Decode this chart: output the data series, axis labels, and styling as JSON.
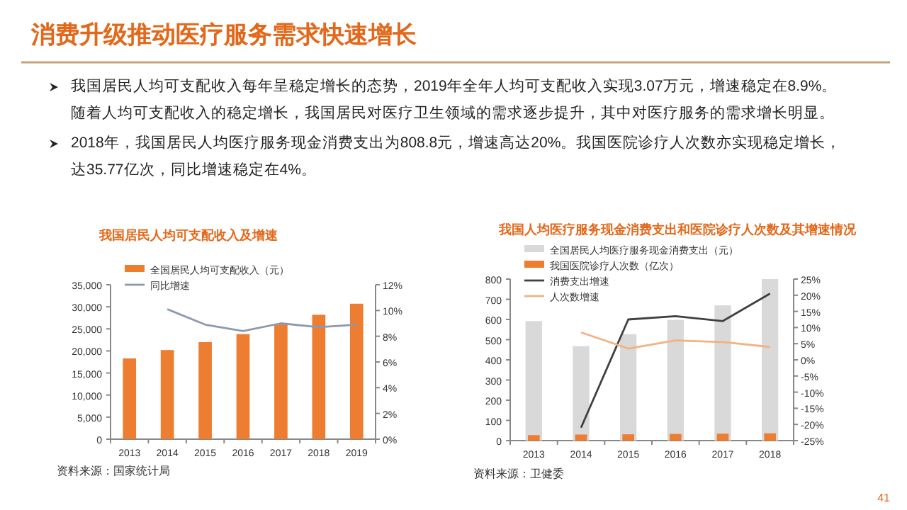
{
  "chart_data": [
    {
      "type": "other",
      "title": "消费升级推动医疗服务需求快速增长",
      "annotations": [
        "我国居民人均可支配收入每年呈稳定增长的态势，2019年全年人均可支配收入实现3.07万元，增速稳定在8.9%。随着人均可支配收入的稳定增长，我国居民对医疗卫生领域的需求逐步提升，其中对医疗服务的需求增长明显。",
        "2018年，我国居民人均医疗服务现金消费支出为808.8元，增速高达20%。我国医院诊疗人次数亦实现稳定增长，达35.77亿次，同比增速稳定在4%。",
        "41"
      ]
    },
    {
      "type": "bar",
      "title": "我国居民人均可支配收入及增速",
      "categories": [
        "2013",
        "2014",
        "2015",
        "2016",
        "2017",
        "2018",
        "2019"
      ],
      "series": [
        {
          "name": "全国居民人均可支配收入（元）",
          "color": "#ed7d31",
          "values": [
            18300,
            20200,
            22000,
            23800,
            26000,
            28200,
            30700
          ]
        },
        {
          "name": "同比增速",
          "type": "line",
          "axis": "y2",
          "color": "#8c9aae",
          "values": [
            null,
            10.1,
            8.9,
            8.4,
            9.0,
            8.7,
            8.9
          ]
        }
      ],
      "ylim": [
        0,
        35000
      ],
      "yticks": [
        0,
        {
          "value": 5000,
          "label": "5,000"
        },
        {
          "value": 10000,
          "label": "10,000"
        },
        {
          "value": 15000,
          "label": "15,000"
        },
        {
          "value": 20000,
          "label": "20,000"
        },
        {
          "value": 25000,
          "label": "25,000"
        },
        {
          "value": 30000,
          "label": "30,000"
        },
        {
          "value": 35000,
          "label": "35,000"
        }
      ],
      "y2lim": [
        0,
        12
      ],
      "y2ticks": [
        {
          "value": 0,
          "label": "0%"
        },
        {
          "value": 2,
          "label": "2%"
        },
        {
          "value": 4,
          "label": "4%"
        },
        {
          "value": 6,
          "label": "6%"
        },
        {
          "value": 8,
          "label": "8%"
        },
        {
          "value": 10,
          "label": "10%"
        },
        {
          "value": 12,
          "label": "12%"
        }
      ],
      "legend": "top left",
      "annotations": [
        "资料来源：国家统计局"
      ]
    },
    {
      "type": "bar",
      "title": "我国人均医疗服务现金消费支出和医院诊疗人次数及其增速情况",
      "categories": [
        "2013",
        "2014",
        "2015",
        "2016",
        "2017",
        "2018"
      ],
      "series": [
        {
          "name": "全国居民人均医疗服务现金消费支出（元）",
          "color": "#d9d9d9",
          "values": [
            592,
            468,
            527,
            598,
            670,
            800
          ]
        },
        {
          "name": "我国医院诊疗人次数（亿次）",
          "color": "#ed7d31",
          "values": [
            27,
            30,
            31,
            33,
            34,
            36
          ]
        },
        {
          "name": "消费支出增速",
          "type": "line",
          "axis": "y2",
          "color": "#404040",
          "values": [
            null,
            -21,
            12.5,
            13.5,
            12,
            20.5
          ]
        },
        {
          "name": "人次数增速",
          "type": "line",
          "axis": "y2",
          "color": "#f4b183",
          "values": [
            null,
            8.5,
            3.5,
            6,
            5.5,
            4
          ]
        }
      ],
      "ylim": [
        0,
        800
      ],
      "yticks": [
        0,
        100,
        200,
        300,
        400,
        500,
        600,
        700,
        800
      ],
      "y2lim": [
        -25,
        25
      ],
      "y2ticks": [
        {
          "value": -25,
          "label": "-25%"
        },
        {
          "value": -20,
          "label": "-20%"
        },
        {
          "value": -15,
          "label": "-15%"
        },
        {
          "value": -10,
          "label": "-10%"
        },
        {
          "value": -5,
          "label": "-5%"
        },
        {
          "value": 0,
          "label": "0%"
        },
        {
          "value": 5,
          "label": "5%"
        },
        {
          "value": 10,
          "label": "10%"
        },
        {
          "value": 15,
          "label": "15%"
        },
        {
          "value": 20,
          "label": "20%"
        },
        {
          "value": 25,
          "label": "25%"
        }
      ],
      "legend": "top left",
      "annotations": [
        "资料来源：卫健委"
      ]
    }
  ]
}
